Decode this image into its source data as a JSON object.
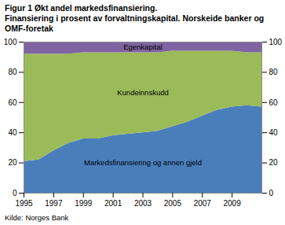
{
  "chart_data": {
    "type": "area",
    "title": "Figur 1 Økt andel markedsfinansiering.",
    "subtitle": "Finansiering i prosent av forvaltningskapital. Norskeide banker og OMF-foretak",
    "source": "Kilde: Norges Bank",
    "stacked": true,
    "grid": false,
    "x": [
      1995,
      1996,
      1997,
      1998,
      1999,
      2000,
      2001,
      2002,
      2003,
      2004,
      2005,
      2006,
      2007,
      2008,
      2009,
      2010,
      2011
    ],
    "series": [
      {
        "name": "Markedsfinansiering og annen gjeld",
        "color": "#4a7ebb",
        "values": [
          21,
          22,
          28,
          33,
          36,
          36,
          38,
          39,
          40,
          41,
          44,
          47,
          51,
          55,
          57,
          58,
          57
        ]
      },
      {
        "name": "Kundeinnskudd",
        "color": "#9bbb59",
        "values": [
          71,
          70,
          64,
          59,
          57,
          57,
          55,
          54,
          53,
          52,
          50,
          47,
          43,
          39,
          37,
          35,
          36
        ]
      },
      {
        "name": "Egenkapital",
        "color": "#8064a2",
        "values": [
          8,
          8,
          8,
          8,
          7,
          7,
          7,
          7,
          7,
          7,
          6,
          6,
          6,
          6,
          6,
          7,
          7
        ]
      }
    ],
    "xlim": [
      1995,
      2011
    ],
    "xticks": [
      1995,
      1997,
      1999,
      2001,
      2003,
      2005,
      2007,
      2009
    ],
    "ylim": [
      0,
      100
    ],
    "yticks": [
      0,
      20,
      40,
      60,
      80,
      100
    ]
  }
}
